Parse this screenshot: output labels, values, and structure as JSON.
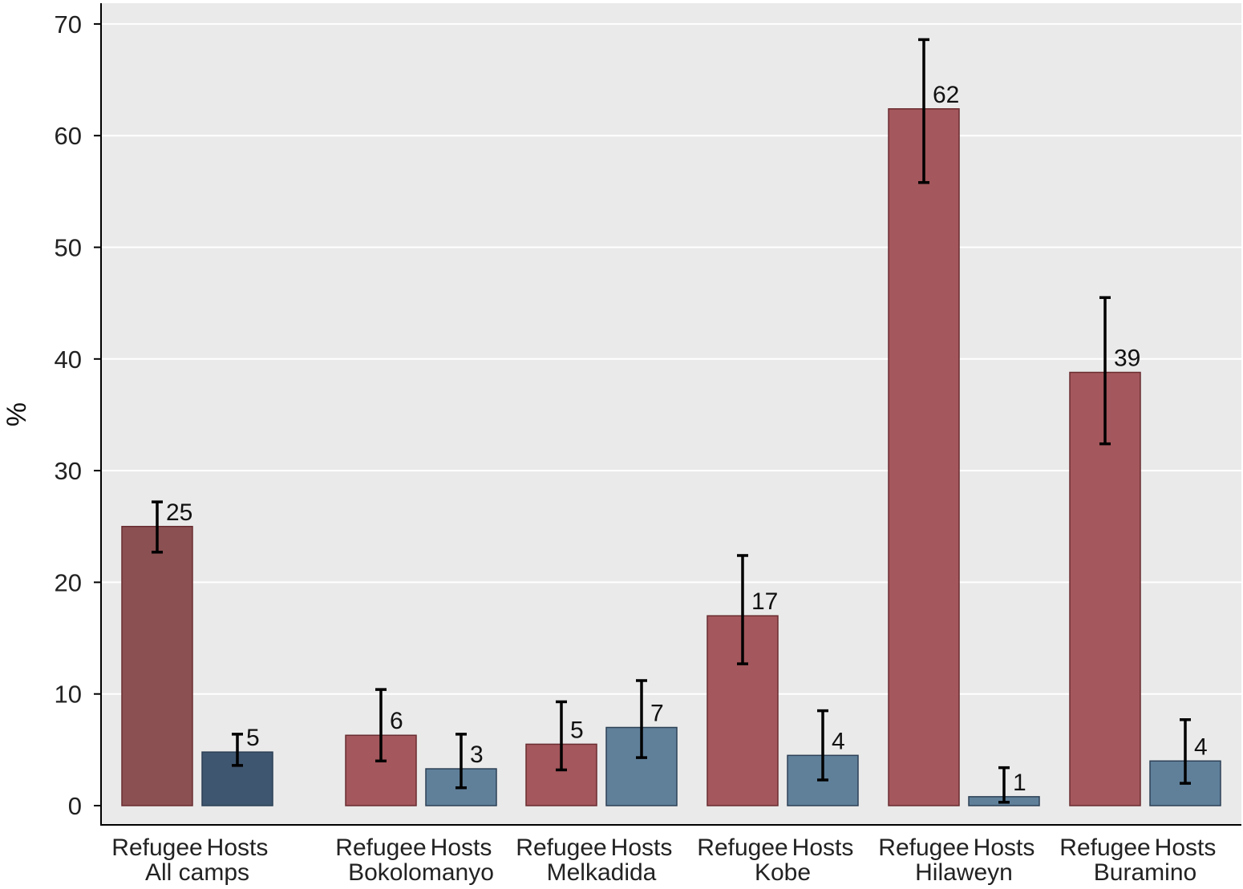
{
  "chart_data": {
    "type": "bar",
    "title": "",
    "xlabel": "",
    "ylabel": "%",
    "ylim": [
      0,
      70
    ],
    "yticks": [
      0,
      10,
      20,
      30,
      40,
      50,
      60,
      70
    ],
    "grid": true,
    "legend": "none",
    "groups": [
      {
        "label": "All camps",
        "emphasis": true,
        "bars": [
          {
            "category": "Refugee",
            "value": 25,
            "label": "25",
            "ci": [
              22.7,
              27.2
            ]
          },
          {
            "category": "Hosts",
            "value": 4.8,
            "label": "5",
            "ci": [
              3.6,
              6.4
            ]
          }
        ]
      },
      {
        "label": "Bokolomanyo",
        "emphasis": false,
        "bars": [
          {
            "category": "Refugee",
            "value": 6.3,
            "label": "6",
            "ci": [
              4.0,
              10.4
            ]
          },
          {
            "category": "Hosts",
            "value": 3.3,
            "label": "3",
            "ci": [
              1.6,
              6.4
            ]
          }
        ]
      },
      {
        "label": "Melkadida",
        "emphasis": false,
        "bars": [
          {
            "category": "Refugee",
            "value": 5.5,
            "label": "5",
            "ci": [
              3.2,
              9.3
            ]
          },
          {
            "category": "Hosts",
            "value": 7.0,
            "label": "7",
            "ci": [
              4.3,
              11.2
            ]
          }
        ]
      },
      {
        "label": "Kobe",
        "emphasis": false,
        "bars": [
          {
            "category": "Refugee",
            "value": 17.0,
            "label": "17",
            "ci": [
              12.7,
              22.4
            ]
          },
          {
            "category": "Hosts",
            "value": 4.5,
            "label": "4",
            "ci": [
              2.3,
              8.5
            ]
          }
        ]
      },
      {
        "label": "Hilaweyn",
        "emphasis": false,
        "bars": [
          {
            "category": "Refugee",
            "value": 62.4,
            "label": "62",
            "ci": [
              55.8,
              68.6
            ]
          },
          {
            "category": "Hosts",
            "value": 0.8,
            "label": "1",
            "ci": [
              0.3,
              3.4
            ]
          }
        ]
      },
      {
        "label": "Buramino",
        "emphasis": false,
        "bars": [
          {
            "category": "Refugee",
            "value": 38.8,
            "label": "39",
            "ci": [
              32.4,
              45.5
            ]
          },
          {
            "category": "Hosts",
            "value": 4.0,
            "label": "4",
            "ci": [
              2.0,
              7.7
            ]
          }
        ]
      }
    ],
    "colors": {
      "refugee_emphasis": "#8b5052",
      "hosts_emphasis": "#3f5670",
      "refugee": "#a4575c",
      "hosts": "#60809a",
      "plot_background": "#eaeaea",
      "gridline": "#ffffff",
      "error_bar": "#000000"
    }
  }
}
